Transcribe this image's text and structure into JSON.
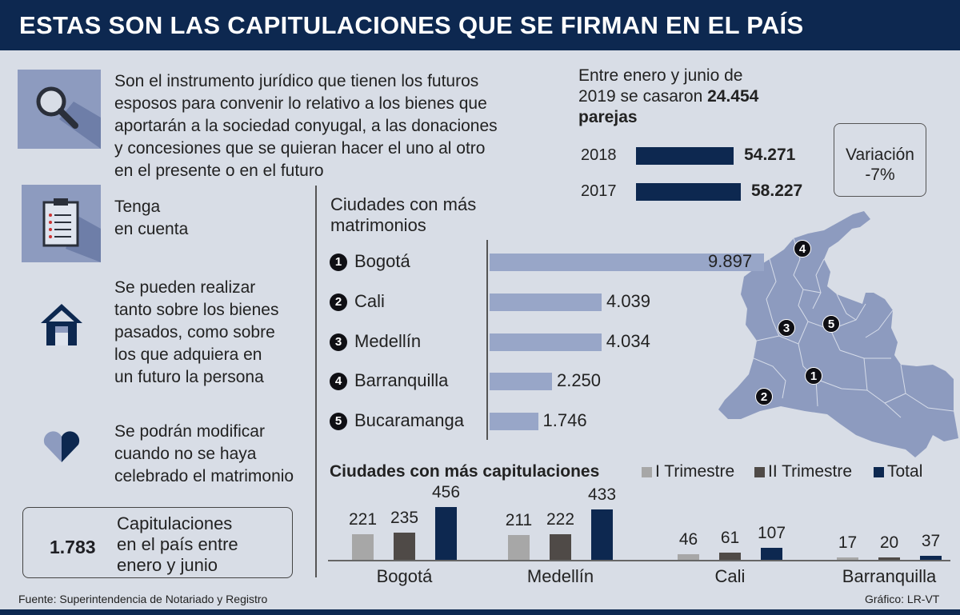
{
  "header": {
    "title": "ESTAS SON LAS CAPITULACIONES QUE SE FIRMAN EN EL PAÍS"
  },
  "intro": {
    "line1": "Son el instrumento jurídico que tienen los futuros",
    "line2": "esposos para convenir lo relativo a los bienes que",
    "line3": "aportarán a la sociedad conyugal, a las donaciones",
    "line4": "y concesiones que se quieran hacer el uno al otro",
    "line5": "en el presente o en el futuro"
  },
  "notes": {
    "heading_line1": "Tenga",
    "heading_line2": "en cuenta",
    "note1": [
      "Se pueden realizar",
      "tanto sobre los bienes",
      "pasados, como sobre",
      "los que adquiera en",
      "un futuro la persona"
    ],
    "note2": [
      "Se podrán modificar",
      "cuando no se haya",
      "celebrado el matrimonio"
    ]
  },
  "total_box": {
    "value": "1.783",
    "label_line1": "Capitulaciones",
    "label_line2": "en el país entre",
    "label_line3": "enero y junio"
  },
  "marriages": {
    "line1": "Entre enero y junio de",
    "line2_prefix": "2019 se casaron ",
    "line2_value": "24.454",
    "line3": "parejas",
    "variation_label": "Variación",
    "variation_value": "-7%"
  },
  "colors": {
    "navy": "#0d2850",
    "bar_light": "#98a6c8",
    "map": "#8d9bbf",
    "trim1": "#a7a7a7",
    "trim2": "#4f4a47",
    "total": "#0d2850"
  },
  "chart_data": [
    {
      "type": "bar",
      "orientation": "horizontal",
      "categories": [
        "2018",
        "2017"
      ],
      "values": [
        54271,
        58227
      ],
      "value_labels": [
        "54.271",
        "58.227"
      ]
    },
    {
      "type": "bar",
      "orientation": "horizontal",
      "title": "Ciudades con más matrimonios",
      "categories": [
        "Bogotá",
        "Cali",
        "Medellín",
        "Barranquilla",
        "Bucaramanga"
      ],
      "ranks": [
        "1",
        "2",
        "3",
        "4",
        "5"
      ],
      "values": [
        9897,
        4039,
        4034,
        2250,
        1746
      ],
      "value_labels": [
        "9.897",
        "4.039",
        "4.034",
        "2.250",
        "1.746"
      ]
    },
    {
      "type": "bar",
      "title": "Ciudades con más capitulaciones",
      "categories": [
        "Bogotá",
        "Medellín",
        "Cali",
        "Barranquilla"
      ],
      "series": [
        {
          "name": "I Trimestre",
          "values": [
            221,
            211,
            46,
            17
          ]
        },
        {
          "name": "II Trimestre",
          "values": [
            235,
            222,
            61,
            20
          ]
        },
        {
          "name": "Total",
          "values": [
            456,
            433,
            107,
            37
          ]
        }
      ],
      "legend": "top-right"
    }
  ],
  "footer": {
    "source": "Fuente: Superintendencia de Notariado y Registro",
    "credit": "Gráfico: LR-VT"
  }
}
